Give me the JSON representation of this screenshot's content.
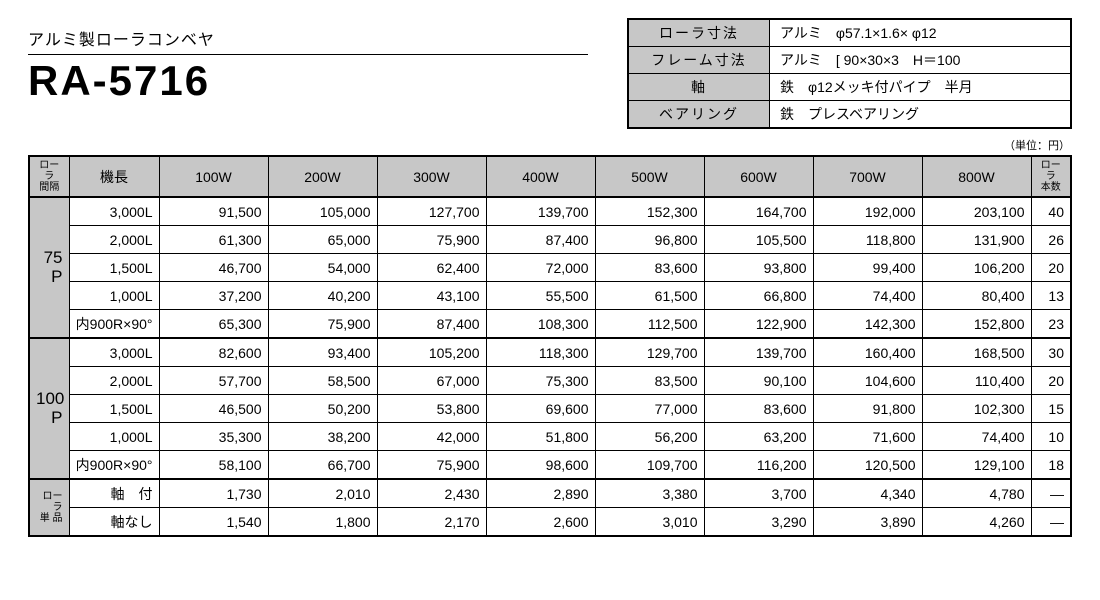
{
  "header": {
    "subtitle": "アルミ製ローラコンベヤ",
    "model": "RA-5716"
  },
  "spec": {
    "rows": [
      {
        "label": "ローラ寸法",
        "value": "アルミ　φ57.1×1.6× φ12"
      },
      {
        "label": "フレーム寸法",
        "value": "アルミ　[ 90×30×3　H＝100"
      },
      {
        "label": "軸",
        "value": "鉄　φ12メッキ付パイプ　半月"
      },
      {
        "label": "ベアリング",
        "value": "鉄　プレスベアリング"
      }
    ]
  },
  "unit_note": "（単位：円）",
  "price": {
    "header": {
      "pitch": "ローラ\n間隔",
      "length": "機長",
      "widths": [
        "100W",
        "200W",
        "300W",
        "400W",
        "500W",
        "600W",
        "700W",
        "800W"
      ],
      "count": "ローラ\n本数"
    },
    "groups": [
      {
        "pitch": "75\nP",
        "rows": [
          {
            "len": "3,000L",
            "vals": [
              "91,500",
              "105,000",
              "127,700",
              "139,700",
              "152,300",
              "164,700",
              "192,000",
              "203,100"
            ],
            "cnt": "40"
          },
          {
            "len": "2,000L",
            "vals": [
              "61,300",
              "65,000",
              "75,900",
              "87,400",
              "96,800",
              "105,500",
              "118,800",
              "131,900"
            ],
            "cnt": "26"
          },
          {
            "len": "1,500L",
            "vals": [
              "46,700",
              "54,000",
              "62,400",
              "72,000",
              "83,600",
              "93,800",
              "99,400",
              "106,200"
            ],
            "cnt": "20"
          },
          {
            "len": "1,000L",
            "vals": [
              "37,200",
              "40,200",
              "43,100",
              "55,500",
              "61,500",
              "66,800",
              "74,400",
              "80,400"
            ],
            "cnt": "13"
          },
          {
            "len": "内900R×90°",
            "vals": [
              "65,300",
              "75,900",
              "87,400",
              "108,300",
              "112,500",
              "122,900",
              "142,300",
              "152,800"
            ],
            "cnt": "23"
          }
        ]
      },
      {
        "pitch": "100\nP",
        "rows": [
          {
            "len": "3,000L",
            "vals": [
              "82,600",
              "93,400",
              "105,200",
              "118,300",
              "129,700",
              "139,700",
              "160,400",
              "168,500"
            ],
            "cnt": "30"
          },
          {
            "len": "2,000L",
            "vals": [
              "57,700",
              "58,500",
              "67,000",
              "75,300",
              "83,500",
              "90,100",
              "104,600",
              "110,400"
            ],
            "cnt": "20"
          },
          {
            "len": "1,500L",
            "vals": [
              "46,500",
              "50,200",
              "53,800",
              "69,600",
              "77,000",
              "83,600",
              "91,800",
              "102,300"
            ],
            "cnt": "15"
          },
          {
            "len": "1,000L",
            "vals": [
              "35,300",
              "38,200",
              "42,000",
              "51,800",
              "56,200",
              "63,200",
              "71,600",
              "74,400"
            ],
            "cnt": "10"
          },
          {
            "len": "内900R×90°",
            "vals": [
              "58,100",
              "66,700",
              "75,900",
              "98,600",
              "109,700",
              "116,200",
              "120,500",
              "129,100"
            ],
            "cnt": "18"
          }
        ]
      }
    ],
    "single": {
      "label": "ローラ\n単 品",
      "rows": [
        {
          "len": "軸　付",
          "vals": [
            "1,730",
            "2,010",
            "2,430",
            "2,890",
            "3,380",
            "3,700",
            "4,340",
            "4,780"
          ],
          "cnt": "—"
        },
        {
          "len": "軸なし",
          "vals": [
            "1,540",
            "1,800",
            "2,170",
            "2,600",
            "3,010",
            "3,290",
            "3,890",
            "4,260"
          ],
          "cnt": "—"
        }
      ]
    }
  }
}
